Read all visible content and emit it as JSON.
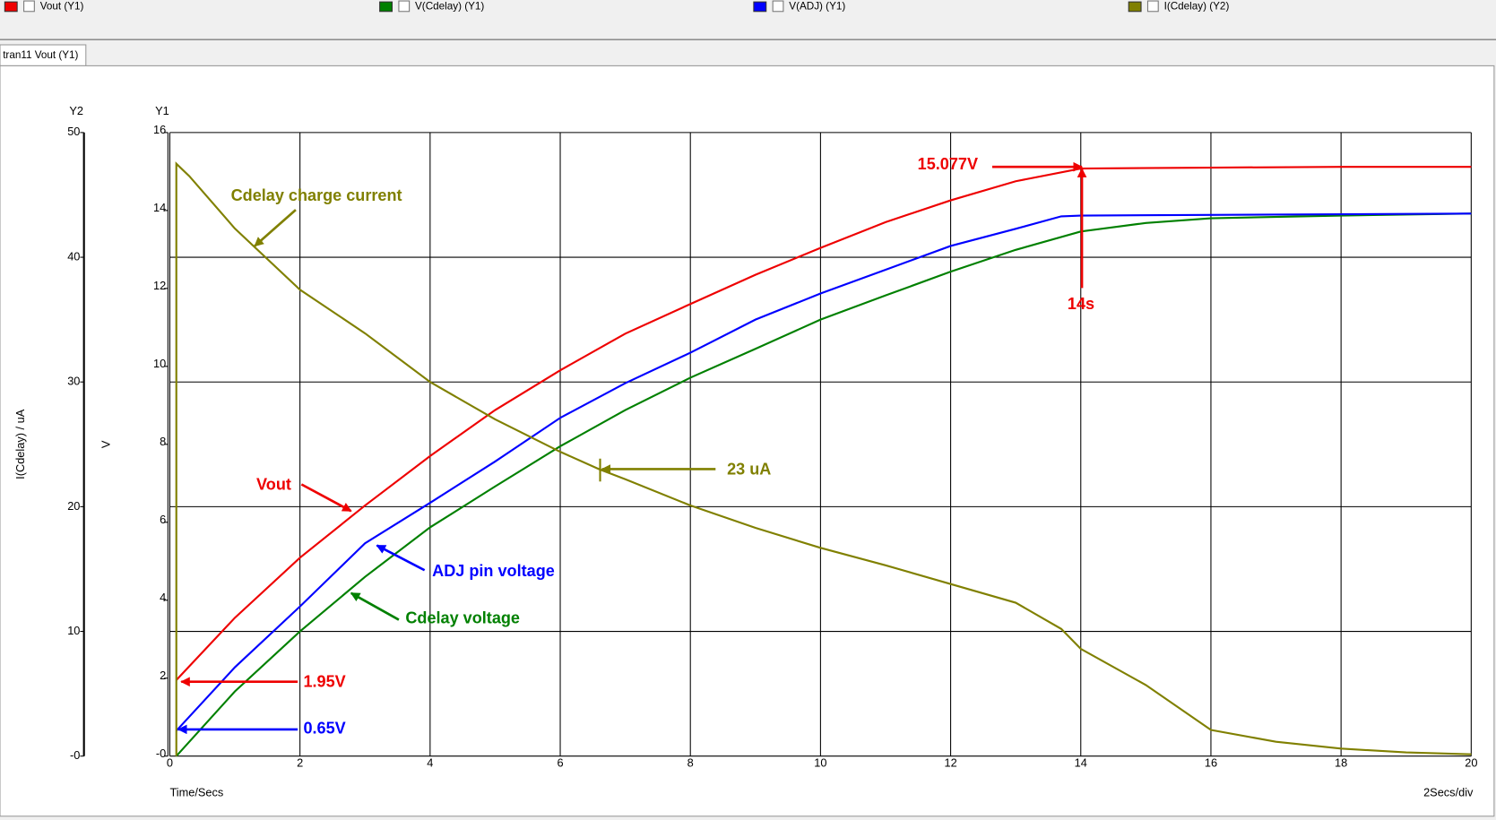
{
  "tab": "tran11 Vout (Y1)",
  "chart_data": {
    "type": "line",
    "xlabel": "Time/Secs",
    "xscale_label": "2Secs/div",
    "ylabel": "V",
    "y_axis_name": "Y1",
    "y2label": "I(Cdelay) / uA",
    "y2_axis_name": "Y2",
    "xlim": [
      0,
      20
    ],
    "xticks": [
      0,
      2,
      4,
      6,
      8,
      10,
      12,
      14,
      16,
      18,
      20
    ],
    "ylim": [
      0,
      16
    ],
    "yticks": [
      {
        "value": 0,
        "label": "-0"
      },
      2,
      4,
      6,
      8,
      10,
      12,
      14,
      16
    ],
    "y2lim": [
      0,
      50
    ],
    "y2ticks": [
      {
        "value": 0,
        "label": "-0"
      },
      10,
      20,
      30,
      40,
      50
    ],
    "grid": true,
    "series": [
      {
        "name": "Vout (Y1)",
        "color": "#ee0000",
        "x": [
          0.1,
          1,
          2,
          3,
          4,
          5,
          6,
          7,
          8,
          9,
          10,
          11,
          12,
          13,
          14,
          16,
          18,
          20
        ],
        "values": [
          1.95,
          3.55,
          5.09,
          6.43,
          7.7,
          8.88,
          9.9,
          10.84,
          11.6,
          12.35,
          13.04,
          13.7,
          14.26,
          14.75,
          15.077,
          15.1,
          15.12,
          15.12
        ]
      },
      {
        "name": "V(Cdelay) (Y1)",
        "color": "#008000",
        "x": [
          0.1,
          1,
          2,
          3,
          4,
          5,
          6,
          7,
          8,
          9,
          10,
          11,
          12,
          13,
          14,
          15,
          16,
          18,
          20
        ],
        "values": [
          0,
          1.66,
          3.2,
          4.6,
          5.87,
          6.92,
          7.95,
          8.88,
          9.71,
          10.45,
          11.2,
          11.82,
          12.43,
          12.99,
          13.46,
          13.68,
          13.8,
          13.87,
          13.92
        ]
      },
      {
        "name": "V(ADJ) (Y1)",
        "color": "#0000ff",
        "x": [
          0.1,
          1,
          2,
          3,
          4,
          5,
          6,
          7,
          8,
          9,
          10,
          11,
          12,
          13,
          13.7,
          14,
          20
        ],
        "values": [
          0.65,
          2.28,
          3.84,
          5.46,
          6.5,
          7.56,
          8.68,
          9.57,
          10.35,
          11.2,
          11.87,
          12.48,
          13.09,
          13.53,
          13.85,
          13.87,
          13.92
        ]
      },
      {
        "name": "I(Cdelay) (Y2)",
        "color": "#808000",
        "axis": "y2",
        "x": [
          0.1,
          0.1,
          0.3,
          1,
          2,
          3,
          4,
          5,
          6,
          6.6,
          7,
          8,
          9,
          10,
          11,
          12,
          13,
          13.7,
          14,
          15,
          16,
          17,
          18,
          19,
          20
        ],
        "values": [
          0,
          47.5,
          46.5,
          42.3,
          37.4,
          33.9,
          30,
          27,
          24.4,
          23,
          22.2,
          20.1,
          18.3,
          16.7,
          15.3,
          13.8,
          12.3,
          10.2,
          8.6,
          5.7,
          2.1,
          1.15,
          0.6,
          0.3,
          0.15
        ]
      }
    ],
    "annotations": [
      {
        "text": "Cdelay charge current",
        "color": "#808000"
      },
      {
        "text": "15.077V",
        "color": "#ee0000"
      },
      {
        "text": "14s",
        "color": "#ee0000"
      },
      {
        "text": "Vout",
        "color": "#ee0000"
      },
      {
        "text": "ADJ pin voltage",
        "color": "#0000ff"
      },
      {
        "text": "Cdelay voltage",
        "color": "#008000"
      },
      {
        "text": "23 uA",
        "color": "#808000"
      },
      {
        "text": "1.95V",
        "color": "#ee0000"
      },
      {
        "text": "0.65V",
        "color": "#0000ff"
      }
    ]
  }
}
